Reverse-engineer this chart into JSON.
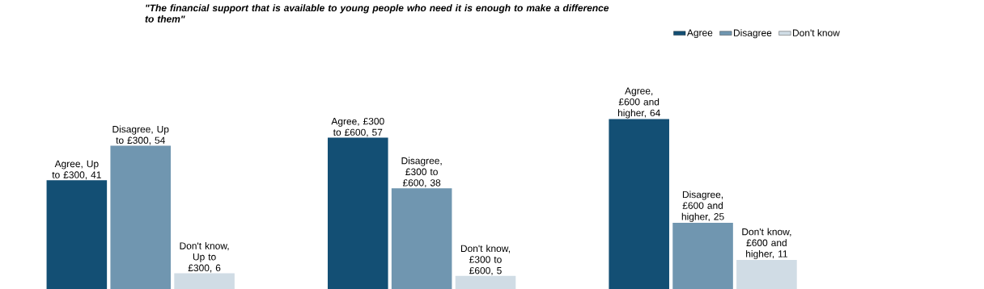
{
  "chart_data": {
    "type": "bar",
    "title": "\"The financial support that is available to young people who need it is enough to make a difference to them\"",
    "categories": [
      null,
      null,
      null
    ],
    "series": [
      {
        "name": "Agree",
        "color": "#134f74",
        "values": [
          41,
          57,
          64
        ],
        "value_labels": [
          "Agree, Up to £300, 41",
          "Agree, £300 to £600, 57",
          "Agree, £600 and higher, 64"
        ]
      },
      {
        "name": "Disagree",
        "color": "#7096b0",
        "values": [
          54,
          38,
          25
        ],
        "value_labels": [
          "Disagree, Up to £300, 54",
          "Disagree, £300 to £600, 38",
          "Disagree, £600 and higher, 25"
        ]
      },
      {
        "name": "Don't know",
        "color": "#d0dce5",
        "values": [
          6,
          5,
          11
        ],
        "value_labels": [
          "Don't know, Up to £300, 6",
          "Don't know, £300 to £600, 5",
          "Don't know, £600 and higher, 11"
        ]
      }
    ],
    "legend": "top right"
  }
}
